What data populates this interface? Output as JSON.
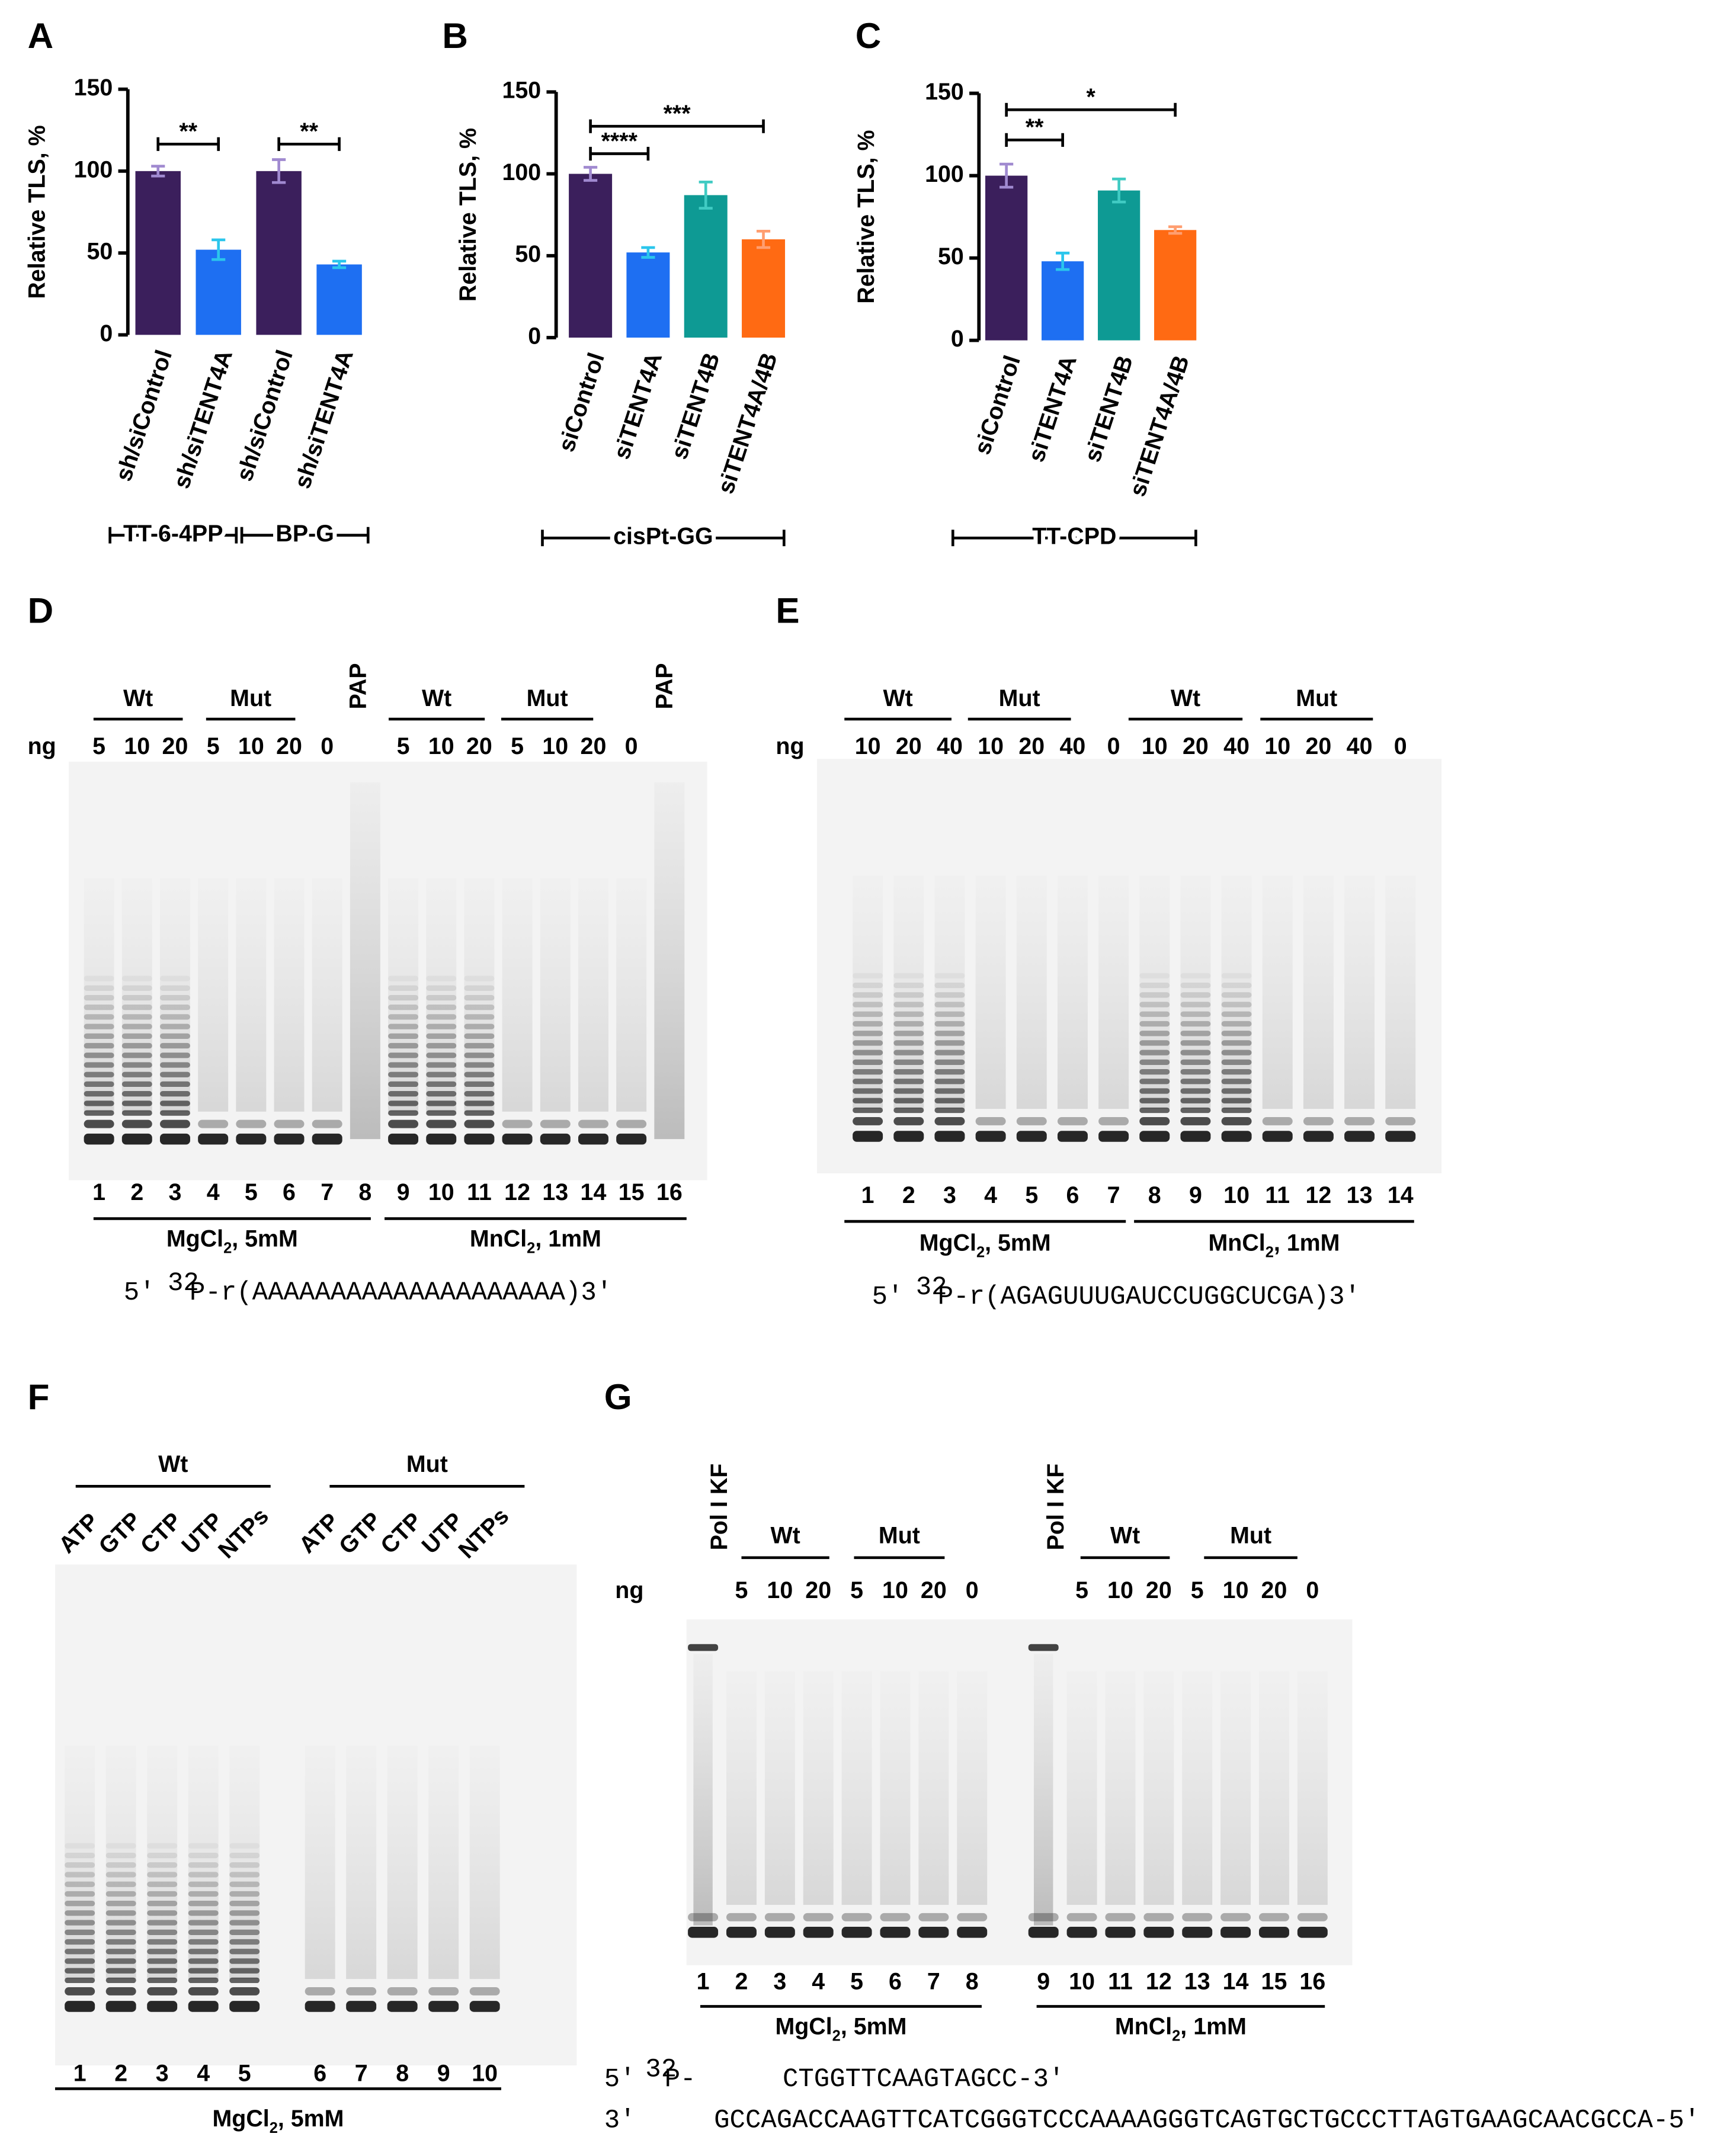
{
  "chart_data": [
    {
      "type": "bar",
      "panel": "A",
      "ylabel": "Relative TLS, %",
      "categories": [
        "sh/siControl",
        "sh/siTENT4A",
        "sh/siControl",
        "sh/siTENT4A"
      ],
      "values": [
        100,
        52,
        100,
        43
      ],
      "errors": [
        3,
        6,
        7,
        2
      ],
      "colors": [
        "#3b1f5c",
        "#1e6ff2",
        "#3b1f5c",
        "#1e6ff2"
      ],
      "error_colors": [
        "#a08ad0",
        "#2bc6ec",
        "#a08ad0",
        "#2bc6ec"
      ],
      "ylim": [
        0,
        150
      ],
      "yticks": [
        0,
        50,
        100,
        150
      ],
      "significance": [
        "**",
        "**"
      ],
      "groups": [
        "TT-6-4PP",
        "BP-G"
      ]
    },
    {
      "type": "bar",
      "panel": "B",
      "ylabel": "Relative TLS, %",
      "categories": [
        "siControl",
        "siTENT4A",
        "siTENT4B",
        "siTENT4A/4B"
      ],
      "values": [
        100,
        52,
        87,
        60
      ],
      "errors": [
        4,
        3,
        8,
        5
      ],
      "colors": [
        "#3b1f5c",
        "#1e6ff2",
        "#0e9a94",
        "#ff6a13"
      ],
      "error_colors": [
        "#a08ad0",
        "#2bc6ec",
        "#40cbc3",
        "#ff9e70"
      ],
      "ylim": [
        0,
        150
      ],
      "yticks": [
        0,
        50,
        100,
        150
      ],
      "significance": [
        "****",
        "***"
      ],
      "groups": [
        "cisPt-GG"
      ]
    },
    {
      "type": "bar",
      "panel": "C",
      "ylabel": "Relative TLS, %",
      "categories": [
        "siControl",
        "siTENT4A",
        "siTENT4B",
        "siTENT4A/4B"
      ],
      "values": [
        100,
        48,
        91,
        67
      ],
      "errors": [
        7,
        5,
        7,
        2
      ],
      "colors": [
        "#3b1f5c",
        "#1e6ff2",
        "#0e9a94",
        "#ff6a13"
      ],
      "error_colors": [
        "#a08ad0",
        "#2bc6ec",
        "#40cbc3",
        "#ff9e70"
      ],
      "ylim": [
        0,
        150
      ],
      "yticks": [
        0,
        50,
        100,
        150
      ],
      "significance": [
        "**",
        "*"
      ],
      "groups": [
        "TT-CPD"
      ]
    }
  ],
  "gels": [
    {
      "panel": "D",
      "ng_label": "ng",
      "groups": [
        "Wt",
        "Mut",
        "Wt",
        "Mut"
      ],
      "side_labels": [
        "PAP",
        "PAP"
      ],
      "amounts": [
        5,
        10,
        20,
        5,
        10,
        20,
        0,
        5,
        10,
        20,
        5,
        10,
        20,
        0
      ],
      "lanes": [
        1,
        2,
        3,
        4,
        5,
        6,
        7,
        8,
        9,
        10,
        11,
        12,
        13,
        14,
        15,
        16
      ],
      "conditions": [
        {
          "text": "MgCl",
          "sub": "2",
          "rest": ", 5mM"
        },
        {
          "text": "MnCl",
          "sub": "2",
          "rest": ", 1mM"
        }
      ],
      "sequence": [
        [
          {
            "text": "5′"
          },
          {
            "sup": "32"
          },
          {
            "text": "P-r(AAAAAAAAAAAAAAAAAAAA)3′"
          }
        ]
      ]
    },
    {
      "panel": "E",
      "ng_label": "ng",
      "groups": [
        "Wt",
        "Mut",
        "Wt",
        "Mut"
      ],
      "amounts": [
        10,
        20,
        40,
        10,
        20,
        40,
        0,
        10,
        20,
        40,
        10,
        20,
        40,
        0
      ],
      "lanes": [
        1,
        2,
        3,
        4,
        5,
        6,
        7,
        8,
        9,
        10,
        11,
        12,
        13,
        14
      ],
      "conditions": [
        {
          "text": "MgCl",
          "sub": "2",
          "rest": ", 5mM"
        },
        {
          "text": "MnCl",
          "sub": "2",
          "rest": ", 1mM"
        }
      ],
      "sequence": [
        [
          {
            "text": "5′"
          },
          {
            "sup": "32"
          },
          {
            "text": "P-r(AGAGUUUGAUCCUGGCUCGA)3′"
          }
        ]
      ]
    },
    {
      "panel": "F",
      "groups": [
        "Wt",
        "Mut"
      ],
      "nucleotides": [
        "ATP",
        "GTP",
        "CTP",
        "UTP",
        "NTPs",
        "ATP",
        "GTP",
        "CTP",
        "UTP",
        "NTPs"
      ],
      "lanes": [
        1,
        2,
        3,
        4,
        5,
        6,
        7,
        8,
        9,
        10
      ],
      "conditions": [
        {
          "text": "MgCl",
          "sub": "2",
          "rest": ", 5mM"
        }
      ]
    },
    {
      "panel": "G",
      "ng_label": "ng",
      "groups": [
        "Wt",
        "Mut",
        "Wt",
        "Mut"
      ],
      "side_labels": [
        "Pol I KF",
        "Pol I KF"
      ],
      "amounts": [
        5,
        10,
        20,
        5,
        10,
        20,
        0,
        5,
        10,
        20,
        5,
        10,
        20,
        0
      ],
      "lanes": [
        1,
        2,
        3,
        4,
        5,
        6,
        7,
        8,
        9,
        10,
        11,
        12,
        13,
        14,
        15,
        16
      ],
      "conditions": [
        {
          "text": "MgCl",
          "sub": "2",
          "rest": ", 5mM"
        },
        {
          "text": "MnCl",
          "sub": "2",
          "rest": ", 1mM"
        }
      ],
      "sequence": [
        [
          {
            "text": "5′"
          },
          {
            "sup": "32"
          },
          {
            "text": "P-"
          },
          {
            "text": "CTGGTTCAAGTAGCC-3′"
          }
        ],
        [
          {
            "text": "3′"
          },
          {
            "text": "GCCAGACCAAGTTCATCGGGTCCCAAAAGGGTCAGTGCTGCCCTTAGTGAAGCAACGCCA-5′"
          }
        ]
      ]
    }
  ]
}
